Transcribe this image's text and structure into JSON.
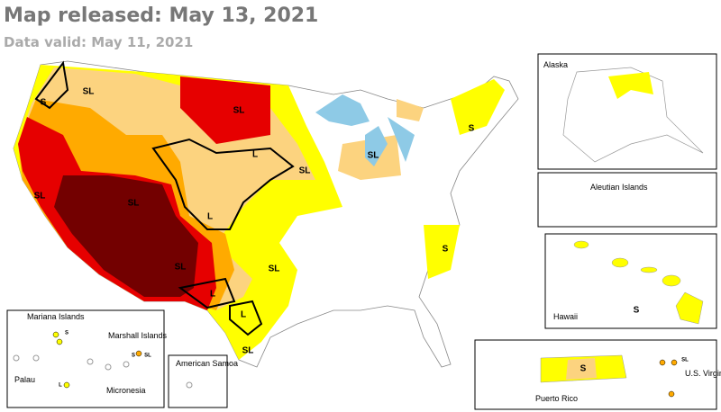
{
  "header": {
    "title": "Map released: May 13, 2021",
    "subtitle": "Data valid: May 11, 2021"
  },
  "map": {
    "impact_labels": [
      "SL",
      "S",
      "SL",
      "L",
      "SL",
      "SL",
      "S",
      "SL",
      "SL",
      "L",
      "S",
      "SL",
      "SL",
      "L",
      "L",
      "SL"
    ]
  },
  "insets": {
    "alaska": "Alaska",
    "aleutian": "Aleutian Islands",
    "hawaii": "Hawaii",
    "puerto_rico": "Puerto Rico",
    "virgin_islands": "U.S. Virgin Islands",
    "mariana": "Mariana Islands",
    "marshall": "Marshall Islands",
    "palau": "Palau",
    "micronesia": "Micronesia",
    "samoa": "American Samoa",
    "impact_labels": [
      "S",
      "S",
      "SL",
      "S",
      "S",
      "SL",
      "L"
    ]
  }
}
